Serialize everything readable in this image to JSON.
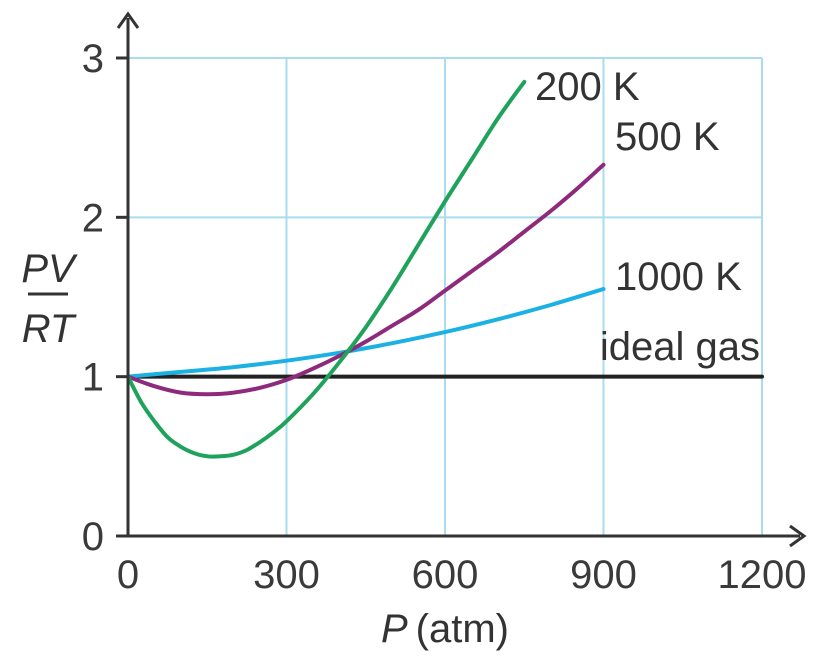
{
  "chart_data": {
    "type": "line",
    "xlabel_var": "P",
    "xlabel_unit": "(atm)",
    "ylabel_num": "PV",
    "ylabel_den": "RT",
    "xlim": [
      0,
      1200
    ],
    "ylim": [
      0,
      3
    ],
    "x_ticks": [
      "0",
      "300",
      "600",
      "900",
      "1200"
    ],
    "y_ticks": [
      "0",
      "1",
      "2",
      "3"
    ],
    "grid": true,
    "series": [
      {
        "name": "200 K",
        "color": "#1fa35c",
        "x": [
          0,
          25,
          50,
          75,
          100,
          125,
          150,
          175,
          200,
          225,
          250,
          275,
          300,
          350,
          400,
          450,
          500,
          550,
          600,
          650,
          700,
          750
        ],
        "y": [
          1.0,
          0.84,
          0.72,
          0.62,
          0.56,
          0.52,
          0.5,
          0.5,
          0.51,
          0.54,
          0.59,
          0.65,
          0.72,
          0.89,
          1.09,
          1.31,
          1.56,
          1.83,
          2.1,
          2.36,
          2.62,
          2.85
        ]
      },
      {
        "name": "500 K",
        "color": "#8e2a7b",
        "x": [
          0,
          50,
          100,
          150,
          200,
          250,
          300,
          350,
          400,
          450,
          500,
          550,
          600,
          650,
          700,
          750,
          800,
          850,
          900
        ],
        "y": [
          1.0,
          0.94,
          0.9,
          0.89,
          0.9,
          0.93,
          0.98,
          1.05,
          1.13,
          1.22,
          1.32,
          1.42,
          1.54,
          1.66,
          1.78,
          1.91,
          2.04,
          2.18,
          2.33
        ]
      },
      {
        "name": "1000 K",
        "color": "#1bb1e3",
        "x": [
          0,
          100,
          200,
          300,
          400,
          500,
          600,
          700,
          800,
          900
        ],
        "y": [
          1.0,
          1.03,
          1.06,
          1.1,
          1.15,
          1.21,
          1.28,
          1.36,
          1.45,
          1.55
        ]
      },
      {
        "name": "ideal gas",
        "color": "#222222",
        "x": [
          0,
          1200
        ],
        "y": [
          1.0,
          1.0
        ]
      }
    ]
  }
}
